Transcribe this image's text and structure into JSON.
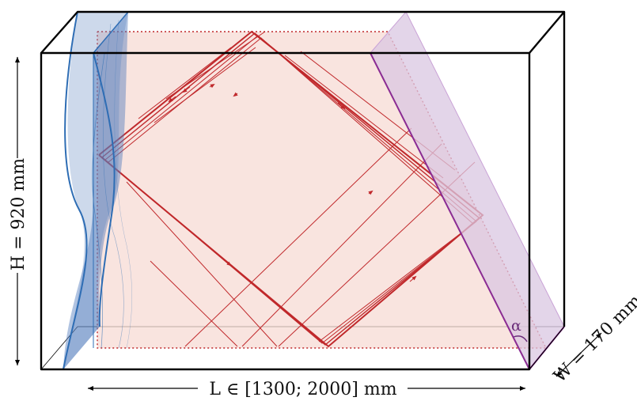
{
  "labels": {
    "length": "L ∈ [1300; 2000] mm",
    "height": "H = 920 mm",
    "width": "W = 170 mm",
    "angle": "α"
  },
  "colors": {
    "frame": "#000000",
    "ray": "#c0282b",
    "ray_plane_fill": "#f6d9d1",
    "ray_plane_border": "#c0282b",
    "wavemaker_fill": "#6f93c7",
    "wavemaker_line": "#2e6db4",
    "absorber_fill": "#d9c7e2",
    "absorber_line": "#8b2c93",
    "angle_mark": "#6b2d7a",
    "dimension": "#000000"
  }
}
